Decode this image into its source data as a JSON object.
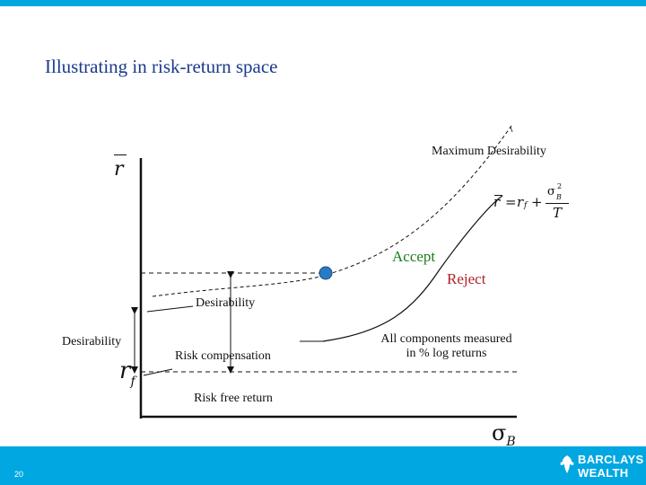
{
  "slide": {
    "title": "Illustrating in risk-return space",
    "page_number": "20"
  },
  "labels": {
    "max_desirability": "Maximum Desirability",
    "accept": "Accept",
    "reject": "Reject",
    "desirability_upper": "Desirability",
    "desirability_left": "Desirability",
    "risk_compensation": "Risk compensation",
    "risk_free_return": "Risk free return",
    "all_components_line1": "All components measured",
    "all_components_line2": "in % log returns"
  },
  "symbols": {
    "y_axis": "r",
    "risk_free": "r",
    "risk_free_sub": "f",
    "x_axis": "σ",
    "x_axis_sub": "B",
    "equation": "r = r_f + σ_B² / T"
  },
  "logo": {
    "line1": "BARCLAYS",
    "line2": "WEALTH"
  },
  "colors": {
    "accent_blue": "#00a7e1",
    "title_blue": "#1a3a8a",
    "accept_green": "#1f7a1f",
    "reject_red": "#b0202a",
    "point_blue": "#2b7bc4"
  }
}
